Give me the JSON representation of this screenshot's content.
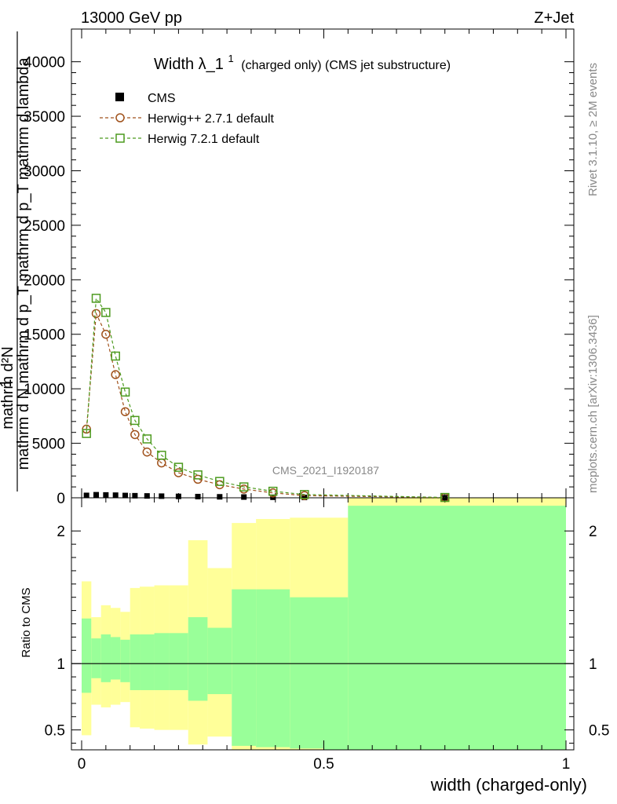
{
  "header": {
    "left_label": "13000 GeV pp",
    "right_label": "Z+Jet"
  },
  "watermarks": {
    "rivet": "Rivet 3.1.10, ≥ 2M events",
    "mcplots": "mcplots.cern.ch [arXiv:1306.3436]",
    "analysis_id": "CMS_2021_I1920187"
  },
  "chart_data": [
    {
      "type": "line",
      "panel": "main",
      "title_main": "Width λ_1",
      "title_sup": "1",
      "title_rest": "(charged only) (CMS jet substructure)",
      "ylabel_lines": [
        "1",
        "mathrm d N mathrm d p_T mathrm d p_T mathrm d lambda",
        "mathrm d²N"
      ],
      "xlabel": "",
      "xlim": [
        0,
        1
      ],
      "ylim": [
        0,
        43000
      ],
      "yticks": [
        0,
        5000,
        10000,
        15000,
        20000,
        25000,
        30000,
        35000,
        40000
      ],
      "ytick_labels": [
        "0",
        "5000",
        "10000",
        "15000",
        "20000",
        "25000",
        "30000",
        "35000",
        "40000"
      ],
      "legend_position": "top-left",
      "series": [
        {
          "name": "CMS",
          "marker": "filled-square",
          "color": "#000000",
          "x": [
            0.01,
            0.03,
            0.05,
            0.07,
            0.09,
            0.11,
            0.135,
            0.165,
            0.2,
            0.24,
            0.285,
            0.335,
            0.395,
            0.46,
            0.75
          ],
          "y": [
            220,
            280,
            260,
            240,
            210,
            190,
            170,
            150,
            130,
            110,
            90,
            70,
            50,
            30,
            5
          ]
        },
        {
          "name": "Herwig++ 2.7.1 default",
          "marker": "open-circle",
          "color": "#a0521c",
          "x": [
            0.01,
            0.03,
            0.05,
            0.07,
            0.09,
            0.11,
            0.135,
            0.165,
            0.2,
            0.24,
            0.285,
            0.335,
            0.395,
            0.46,
            0.75
          ],
          "y": [
            6300,
            16900,
            15000,
            11300,
            7900,
            5800,
            4200,
            3200,
            2300,
            1700,
            1200,
            800,
            450,
            200,
            20
          ]
        },
        {
          "name": "Herwig 7.2.1 default",
          "marker": "open-square",
          "color": "#4c9a1e",
          "x": [
            0.01,
            0.03,
            0.05,
            0.07,
            0.09,
            0.11,
            0.135,
            0.165,
            0.2,
            0.24,
            0.285,
            0.335,
            0.395,
            0.46,
            0.75
          ],
          "y": [
            5900,
            18300,
            17000,
            13000,
            9700,
            7100,
            5400,
            3900,
            2800,
            2100,
            1500,
            1000,
            600,
            300,
            30
          ]
        }
      ]
    },
    {
      "type": "area",
      "panel": "ratio",
      "ylabel": "Ratio to CMS",
      "xlabel": "width (charged-only)",
      "xlim": [
        0,
        1
      ],
      "ylim": [
        0.35,
        2.25
      ],
      "xticks": [
        0,
        0.5,
        1
      ],
      "xtick_labels": [
        "0",
        "0.5",
        "1"
      ],
      "yticks": [
        0.5,
        1,
        2
      ],
      "ytick_labels": [
        "0.5",
        "1",
        "2"
      ],
      "reference_line": 1,
      "bins": [
        {
          "lo": 0.0,
          "hi": 0.02,
          "inner": [
            0.78,
            1.34
          ],
          "outer": [
            0.46,
            1.62
          ]
        },
        {
          "lo": 0.02,
          "hi": 0.04,
          "inner": [
            0.89,
            1.19
          ],
          "outer": [
            0.69,
            1.35
          ]
        },
        {
          "lo": 0.04,
          "hi": 0.06,
          "inner": [
            0.86,
            1.22
          ],
          "outer": [
            0.67,
            1.44
          ]
        },
        {
          "lo": 0.06,
          "hi": 0.08,
          "inner": [
            0.88,
            1.2
          ],
          "outer": [
            0.69,
            1.42
          ]
        },
        {
          "lo": 0.08,
          "hi": 0.1,
          "inner": [
            0.86,
            1.18
          ],
          "outer": [
            0.71,
            1.39
          ]
        },
        {
          "lo": 0.1,
          "hi": 0.12,
          "inner": [
            0.8,
            1.22
          ],
          "outer": [
            0.52,
            1.57
          ]
        },
        {
          "lo": 0.12,
          "hi": 0.15,
          "inner": [
            0.8,
            1.22
          ],
          "outer": [
            0.51,
            1.58
          ]
        },
        {
          "lo": 0.15,
          "hi": 0.18,
          "inner": [
            0.8,
            1.23
          ],
          "outer": [
            0.5,
            1.59
          ]
        },
        {
          "lo": 0.18,
          "hi": 0.22,
          "inner": [
            0.8,
            1.23
          ],
          "outer": [
            0.5,
            1.59
          ]
        },
        {
          "lo": 0.22,
          "hi": 0.26,
          "inner": [
            0.72,
            1.35
          ],
          "outer": [
            0.39,
            1.93
          ]
        },
        {
          "lo": 0.26,
          "hi": 0.31,
          "inner": [
            0.77,
            1.27
          ],
          "outer": [
            0.45,
            1.72
          ]
        },
        {
          "lo": 0.31,
          "hi": 0.36,
          "inner": [
            0.38,
            1.56
          ],
          "outer": [
            0.35,
            2.06
          ]
        },
        {
          "lo": 0.36,
          "hi": 0.43,
          "inner": [
            0.37,
            1.56
          ],
          "outer": [
            0.35,
            2.09
          ]
        },
        {
          "lo": 0.43,
          "hi": 0.5,
          "inner": [
            0.36,
            1.5
          ],
          "outer": [
            0.35,
            2.1
          ]
        },
        {
          "lo": 0.5,
          "hi": 0.55,
          "inner": [
            0.35,
            1.5
          ],
          "outer": [
            0.35,
            2.1
          ]
        },
        {
          "lo": 0.55,
          "hi": 1.0,
          "inner": [
            0.35,
            2.19
          ],
          "outer": [
            0.35,
            2.25
          ]
        }
      ]
    }
  ],
  "colors": {
    "band_outer": "#ffff99",
    "band_inner": "#99ff99",
    "axis": "#000000",
    "watermark": "#888888"
  }
}
